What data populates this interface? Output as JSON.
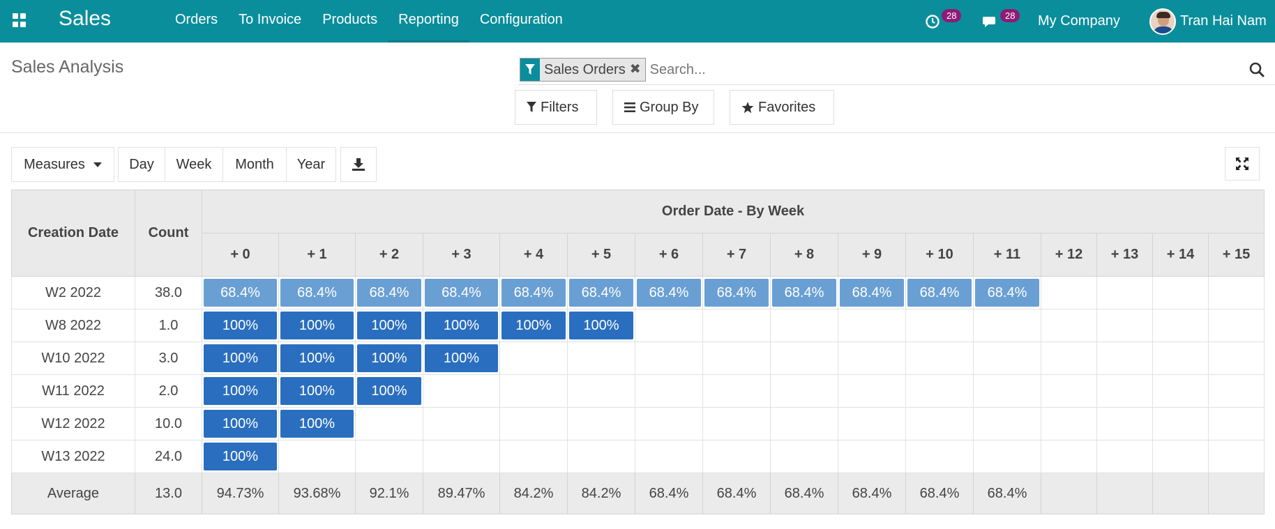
{
  "navbar": {
    "app_name": "Sales",
    "menu": [
      "Orders",
      "To Invoice",
      "Products",
      "Reporting",
      "Configuration"
    ],
    "activity_count": "28",
    "message_count": "28",
    "company": "My Company",
    "user": "Tran Hai Nam",
    "color": "#0a8e9c"
  },
  "page": {
    "title": "Sales Analysis"
  },
  "search": {
    "facet_label": "Sales Orders",
    "placeholder": "Search..."
  },
  "filters": {
    "filters_label": "Filters",
    "groupby_label": "Group By",
    "favorites_label": "Favorites"
  },
  "toolbar": {
    "measures_label": "Measures",
    "intervals": [
      "Day",
      "Week",
      "Month",
      "Year"
    ]
  },
  "pivot": {
    "row_header": "Creation Date",
    "count_header": "Count",
    "group_header": "Order Date - By Week",
    "columns": [
      "+ 0",
      "+ 1",
      "+ 2",
      "+ 3",
      "+ 4",
      "+ 5",
      "+ 6",
      "+ 7",
      "+ 8",
      "+ 9",
      "+ 10",
      "+ 11",
      "+ 12",
      "+ 13",
      "+ 14",
      "+ 15"
    ],
    "rows": [
      {
        "label": "W2 2022",
        "count": "38.0",
        "values": [
          "68.4%",
          "68.4%",
          "68.4%",
          "68.4%",
          "68.4%",
          "68.4%",
          "68.4%",
          "68.4%",
          "68.4%",
          "68.4%",
          "68.4%",
          "68.4%"
        ]
      },
      {
        "label": "W8 2022",
        "count": "1.0",
        "values": [
          "100%",
          "100%",
          "100%",
          "100%",
          "100%",
          "100%"
        ]
      },
      {
        "label": "W10 2022",
        "count": "3.0",
        "values": [
          "100%",
          "100%",
          "100%",
          "100%"
        ]
      },
      {
        "label": "W11 2022",
        "count": "2.0",
        "values": [
          "100%",
          "100%",
          "100%"
        ]
      },
      {
        "label": "W12 2022",
        "count": "10.0",
        "values": [
          "100%",
          "100%"
        ]
      },
      {
        "label": "W13 2022",
        "count": "24.0",
        "values": [
          "100%"
        ]
      }
    ],
    "average": {
      "label": "Average",
      "count": "13.0",
      "values": [
        "94.73%",
        "93.68%",
        "92.1%",
        "89.47%",
        "84.2%",
        "84.2%",
        "68.4%",
        "68.4%",
        "68.4%",
        "68.4%",
        "68.4%",
        "68.4%"
      ]
    },
    "colors": {
      "low": "#6a9fd4",
      "high": "#2a6ebf"
    }
  }
}
